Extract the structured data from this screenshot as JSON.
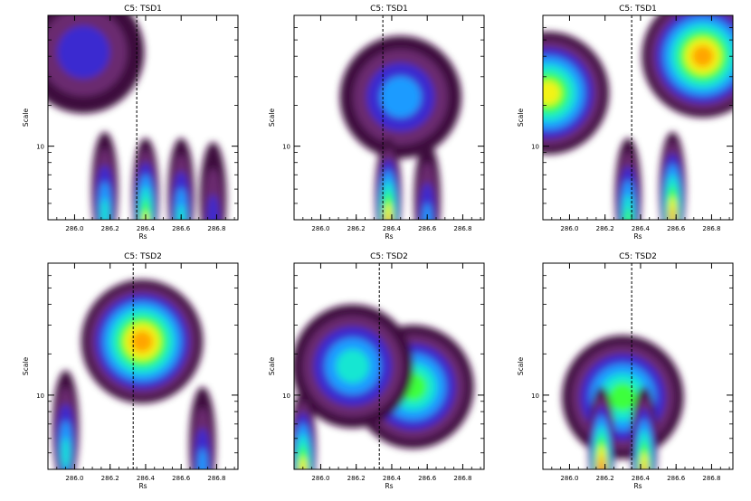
{
  "chart_data": [
    {
      "type": "heatmap",
      "title": "C5: TSD1",
      "xlabel": "Rs",
      "ylabel": "Scale",
      "x_ticks": [
        "286.0",
        "286.2",
        "286.4",
        "286.6",
        "286.8"
      ],
      "y_ticks": [
        "10"
      ],
      "xlim": [
        285.85,
        286.92
      ],
      "dashed_marker_x": 286.35,
      "colormap": [
        "#000000",
        "#3d0a3d",
        "#6a2c70",
        "#3a2bd0",
        "#1e9bff",
        "#17e6d2",
        "#3cff3c",
        "#f3f316",
        "#ffa500",
        "#ff2a00"
      ],
      "features": [
        {
          "label": "broad large-scale band",
          "x": 286.05,
          "y": 0.82,
          "level": 0.35
        },
        {
          "label": "fine-scale ridge",
          "x": 286.17,
          "y": 0.15,
          "level": 0.5
        },
        {
          "label": "fine-scale ridge",
          "x": 286.4,
          "y": 0.12,
          "level": 0.82
        },
        {
          "label": "fine-scale ridge",
          "x": 286.6,
          "y": 0.12,
          "level": 0.55
        },
        {
          "label": "fine-scale ridge",
          "x": 286.78,
          "y": 0.1,
          "level": 0.3
        }
      ]
    },
    {
      "type": "heatmap",
      "title": "C5: TSD1",
      "xlabel": "Rs",
      "ylabel": "Scale",
      "x_ticks": [
        "286.0",
        "286.2",
        "286.4",
        "286.6",
        "286.8"
      ],
      "y_ticks": [
        "10"
      ],
      "xlim": [
        285.85,
        286.92
      ],
      "dashed_marker_x": 286.35,
      "features": [
        {
          "label": "large-scale fan",
          "x": 286.45,
          "y": 0.6,
          "level": 0.4
        },
        {
          "label": "fine-scale ridge",
          "x": 286.38,
          "y": 0.12,
          "level": 0.85
        },
        {
          "label": "fine-scale ridge",
          "x": 286.6,
          "y": 0.1,
          "level": 0.45
        }
      ]
    },
    {
      "type": "heatmap",
      "title": "C5: TSD1",
      "xlabel": "Rs",
      "ylabel": "Scale",
      "x_ticks": [
        "286.0",
        "286.2",
        "286.4",
        "286.6",
        "286.8"
      ],
      "y_ticks": [
        "10"
      ],
      "xlim": [
        285.85,
        286.92
      ],
      "dashed_marker_x": 286.35,
      "features": [
        {
          "label": "left large-scale lobe",
          "x": 285.88,
          "y": 0.62,
          "level": 0.8
        },
        {
          "label": "right large-scale lobe",
          "x": 286.75,
          "y": 0.8,
          "level": 0.85
        },
        {
          "label": "fine-scale ridge",
          "x": 286.58,
          "y": 0.15,
          "level": 0.9
        },
        {
          "label": "fine-scale ridge",
          "x": 286.33,
          "y": 0.12,
          "level": 0.7
        }
      ]
    },
    {
      "type": "heatmap",
      "title": "C5: TSD2",
      "xlabel": "Rs",
      "ylabel": "Scale",
      "x_ticks": [
        "286.0",
        "286.2",
        "286.4",
        "286.6",
        "286.8"
      ],
      "y_ticks": [
        "10"
      ],
      "xlim": [
        285.85,
        286.92
      ],
      "dashed_marker_x": 286.33,
      "features": [
        {
          "label": "dominant large-scale peak",
          "x": 286.38,
          "y": 0.62,
          "level": 0.88
        },
        {
          "label": "small-scale ridge",
          "x": 285.95,
          "y": 0.2,
          "level": 0.55
        },
        {
          "label": "small-scale ridge",
          "x": 286.72,
          "y": 0.12,
          "level": 0.45
        }
      ]
    },
    {
      "type": "heatmap",
      "title": "C5: TSD2",
      "xlabel": "Rs",
      "ylabel": "Scale",
      "x_ticks": [
        "286.0",
        "286.2",
        "286.4",
        "286.6",
        "286.8"
      ],
      "y_ticks": [
        "10"
      ],
      "xlim": [
        285.85,
        286.92
      ],
      "dashed_marker_x": 286.33,
      "features": [
        {
          "label": "mid-scale peak",
          "x": 286.52,
          "y": 0.4,
          "level": 0.72
        },
        {
          "label": "mid-scale peak",
          "x": 286.18,
          "y": 0.5,
          "level": 0.55
        },
        {
          "label": "fine-scale ridge",
          "x": 285.9,
          "y": 0.1,
          "level": 0.85
        }
      ]
    },
    {
      "type": "heatmap",
      "title": "C5: TSD2",
      "xlabel": "Rs",
      "ylabel": "Scale",
      "x_ticks": [
        "286.0",
        "286.2",
        "286.4",
        "286.6",
        "286.8"
      ],
      "y_ticks": [
        "10"
      ],
      "xlim": [
        285.85,
        286.92
      ],
      "dashed_marker_x": 286.35,
      "features": [
        {
          "label": "central fan",
          "x": 286.3,
          "y": 0.35,
          "level": 0.7
        },
        {
          "label": "fine-scale ridge",
          "x": 286.18,
          "y": 0.12,
          "level": 0.95
        },
        {
          "label": "fine-scale ridge",
          "x": 286.42,
          "y": 0.12,
          "level": 0.85
        }
      ]
    }
  ]
}
